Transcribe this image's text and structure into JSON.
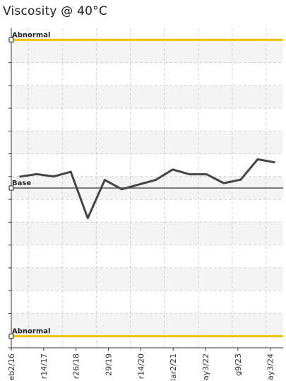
{
  "title": "Viscosity @ 40°C",
  "chart_data": {
    "type": "line",
    "title": "Viscosity @ 40°C",
    "xlabel": "",
    "ylabel": "",
    "categories": [
      "eb2/16",
      "r14/17",
      "r26/18",
      "29/19",
      "r14/20",
      "lar2/21",
      "ay3/22",
      "g9/23",
      "ay3/24"
    ],
    "points": [
      2.45,
      3.0,
      2.5,
      3.5,
      -6.5,
      1.75,
      -0.25,
      0.75,
      1.75,
      4.0,
      2.95,
      2.95,
      1.05,
      1.8,
      6.2,
      5.55
    ],
    "reference_lines": [
      {
        "label": "Abnormal",
        "value": 32.0,
        "color": "#f2c200"
      },
      {
        "label": "Base",
        "value": 0.0,
        "color": "#555555"
      },
      {
        "label": "Abnormal",
        "value": -32.0,
        "color": "#f2c200"
      }
    ],
    "ylim": [
      -34.5,
      34.5
    ],
    "grid": true,
    "colors": {
      "line": "#444444",
      "abnormal": "#f2c200",
      "base": "#555555",
      "band": "#f4f4f4",
      "grid": "#cfcfcf"
    }
  }
}
